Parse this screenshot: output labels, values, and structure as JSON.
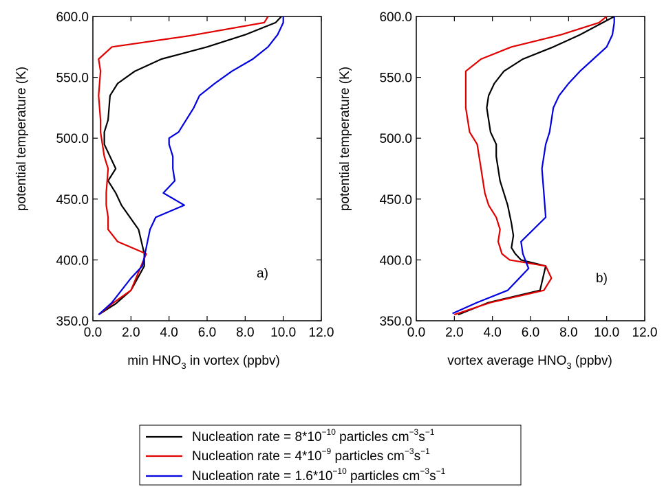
{
  "chart_data": [
    {
      "type": "line",
      "panel_label": "a)",
      "xlabel": "min HNO3 in vortex (ppbv)",
      "xlabel_parts": {
        "before": "min HNO",
        "sub": "3",
        "after": " in vortex (ppbv)"
      },
      "ylabel": "potential temperature (K)",
      "xlim": [
        0.0,
        12.0
      ],
      "ylim": [
        350.0,
        600.0
      ],
      "xticks": [
        "0.0",
        "2.0",
        "4.0",
        "6.0",
        "8.0",
        "10.0",
        "12.0"
      ],
      "yticks": [
        "350.0",
        "400.0",
        "450.0",
        "500.0",
        "550.0",
        "600.0"
      ],
      "series": [
        {
          "color": "#000000",
          "points": [
            [
              0.3,
              355
            ],
            [
              1.2,
              364
            ],
            [
              2.0,
              375
            ],
            [
              2.7,
              395
            ],
            [
              2.7,
              405
            ],
            [
              2.4,
              425
            ],
            [
              1.5,
              445
            ],
            [
              1.2,
              455
            ],
            [
              0.8,
              465
            ],
            [
              1.2,
              475
            ],
            [
              0.9,
              485
            ],
            [
              0.6,
              495
            ],
            [
              0.6,
              505
            ],
            [
              0.8,
              515
            ],
            [
              0.9,
              535
            ],
            [
              1.3,
              545
            ],
            [
              2.2,
              555
            ],
            [
              3.6,
              565
            ],
            [
              6.0,
              575
            ],
            [
              8.0,
              585
            ],
            [
              9.6,
              595
            ],
            [
              9.9,
              600
            ]
          ]
        },
        {
          "color": "#e00000",
          "points": [
            [
              0.3,
              355
            ],
            [
              1.1,
              365
            ],
            [
              2.0,
              375
            ],
            [
              2.8,
              405
            ],
            [
              1.3,
              415
            ],
            [
              0.8,
              425
            ],
            [
              0.8,
              435
            ],
            [
              0.7,
              445
            ],
            [
              0.7,
              455
            ],
            [
              0.8,
              475
            ],
            [
              0.6,
              485
            ],
            [
              0.4,
              505
            ],
            [
              0.4,
              515
            ],
            [
              0.3,
              535
            ],
            [
              0.4,
              555
            ],
            [
              0.3,
              565
            ],
            [
              1.0,
              575
            ],
            [
              5.0,
              584
            ],
            [
              9.0,
              595
            ],
            [
              9.2,
              600
            ]
          ]
        },
        {
          "color": "#0000e0",
          "points": [
            [
              0.3,
              355
            ],
            [
              1.0,
              365
            ],
            [
              2.0,
              385
            ],
            [
              2.6,
              395
            ],
            [
              2.8,
              410
            ],
            [
              3.0,
              425
            ],
            [
              3.3,
              435
            ],
            [
              4.8,
              445
            ],
            [
              3.7,
              455
            ],
            [
              4.3,
              465
            ],
            [
              4.2,
              475
            ],
            [
              4.2,
              485
            ],
            [
              4.0,
              495
            ],
            [
              4.0,
              500
            ],
            [
              4.5,
              505
            ],
            [
              5.3,
              525
            ],
            [
              5.6,
              535
            ],
            [
              6.4,
              545
            ],
            [
              7.3,
              555
            ],
            [
              8.4,
              565
            ],
            [
              9.2,
              575
            ],
            [
              9.7,
              585
            ],
            [
              10.0,
              595
            ],
            [
              10.0,
              600
            ]
          ]
        }
      ]
    },
    {
      "type": "line",
      "panel_label": "b)",
      "xlabel": "vortex average HNO3 (ppbv)",
      "xlabel_parts": {
        "before": "vortex average HNO",
        "sub": "3",
        "after": " (ppbv)"
      },
      "ylabel": "potential temperature (K)",
      "xlim": [
        0.0,
        12.0
      ],
      "ylim": [
        350.0,
        600.0
      ],
      "xticks": [
        "0.0",
        "2.0",
        "4.0",
        "6.0",
        "8.0",
        "10.0",
        "12.0"
      ],
      "yticks": [
        "350.0",
        "400.0",
        "450.0",
        "500.0",
        "550.0",
        "600.0"
      ],
      "series": [
        {
          "color": "#000000",
          "points": [
            [
              2.2,
              355
            ],
            [
              3.8,
              365
            ],
            [
              6.5,
              375
            ],
            [
              6.8,
              395
            ],
            [
              5.5,
              400
            ],
            [
              5.2,
              405
            ],
            [
              5.0,
              410
            ],
            [
              5.1,
              420
            ],
            [
              5.0,
              430
            ],
            [
              4.8,
              445
            ],
            [
              4.4,
              465
            ],
            [
              4.2,
              485
            ],
            [
              4.2,
              495
            ],
            [
              3.9,
              505
            ],
            [
              3.7,
              525
            ],
            [
              3.8,
              535
            ],
            [
              4.1,
              545
            ],
            [
              4.6,
              555
            ],
            [
              5.6,
              565
            ],
            [
              7.2,
              575
            ],
            [
              8.6,
              585
            ],
            [
              9.8,
              595
            ],
            [
              10.4,
              600
            ]
          ]
        },
        {
          "color": "#e00000",
          "points": [
            [
              2.0,
              355
            ],
            [
              3.9,
              365
            ],
            [
              6.7,
              375
            ],
            [
              7.1,
              385
            ],
            [
              6.8,
              395
            ],
            [
              4.9,
              400
            ],
            [
              4.5,
              405
            ],
            [
              4.3,
              415
            ],
            [
              4.4,
              425
            ],
            [
              4.2,
              435
            ],
            [
              3.8,
              445
            ],
            [
              3.6,
              455
            ],
            [
              3.4,
              475
            ],
            [
              3.3,
              485
            ],
            [
              3.2,
              495
            ],
            [
              2.8,
              505
            ],
            [
              2.6,
              525
            ],
            [
              2.6,
              535
            ],
            [
              2.6,
              545
            ],
            [
              2.6,
              555
            ],
            [
              3.4,
              565
            ],
            [
              5.0,
              575
            ],
            [
              7.6,
              585
            ],
            [
              9.6,
              595
            ],
            [
              10.0,
              600
            ]
          ]
        },
        {
          "color": "#0000e0",
          "points": [
            [
              1.9,
              356
            ],
            [
              3.2,
              365
            ],
            [
              4.8,
              375
            ],
            [
              5.9,
              393
            ],
            [
              5.6,
              405
            ],
            [
              5.5,
              415
            ],
            [
              6.8,
              435
            ],
            [
              6.7,
              455
            ],
            [
              6.6,
              475
            ],
            [
              6.8,
              495
            ],
            [
              7.0,
              505
            ],
            [
              7.2,
              525
            ],
            [
              7.5,
              535
            ],
            [
              8.0,
              545
            ],
            [
              8.6,
              555
            ],
            [
              9.3,
              565
            ],
            [
              10.0,
              575
            ],
            [
              10.3,
              585
            ],
            [
              10.4,
              595
            ],
            [
              10.4,
              600
            ]
          ]
        }
      ]
    }
  ],
  "legend": {
    "items": [
      {
        "color": "#000000",
        "label_before": "Nucleation rate = 8*10",
        "exp1": "−10",
        "label_mid": " particles  cm",
        "exp2": "−3",
        "s_label": "s",
        "exp3": "−1"
      },
      {
        "color": "#e00000",
        "label_before": "Nucleation rate = 4*10",
        "exp1": "−9",
        "label_mid": " particles  cm",
        "exp2": "−3",
        "s_label": "s",
        "exp3": "−1"
      },
      {
        "color": "#0000e0",
        "label_before": "Nucleation rate = 1.6*10",
        "exp1": "−10",
        "label_mid": " particles  cm",
        "exp2": "−3",
        "s_label": "s",
        "exp3": "−1"
      }
    ]
  }
}
